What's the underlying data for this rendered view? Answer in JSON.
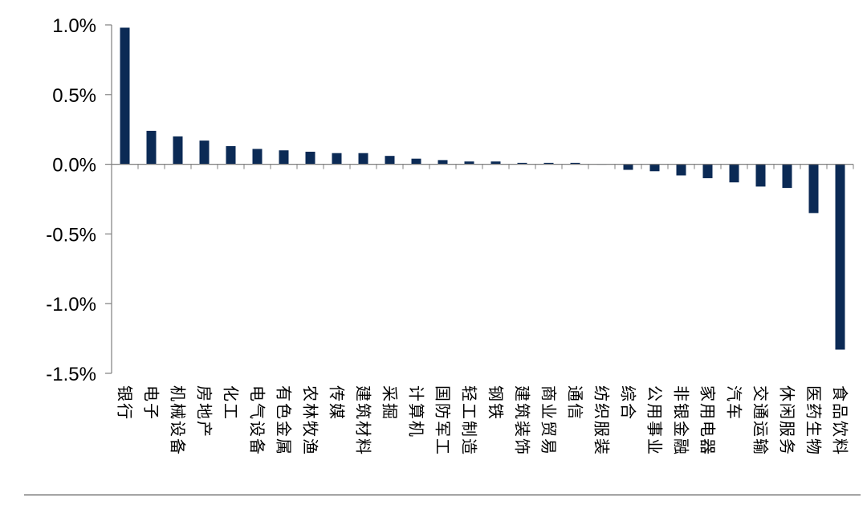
{
  "chart_data": {
    "type": "bar",
    "orientation": "vertical",
    "title": "",
    "xlabel": "",
    "ylabel": "",
    "ylim": [
      -1.5,
      1.0
    ],
    "yticks": [
      1.0,
      0.5,
      0.0,
      -0.5,
      -1.0,
      -1.5
    ],
    "ytick_labels": [
      "1.0%",
      "0.5%",
      "0.0%",
      "-0.5%",
      "-1.0%",
      "-1.5%"
    ],
    "grid": false,
    "legend": "none",
    "bar_color": "#0b2a55",
    "categories": [
      "银行",
      "电子",
      "机械设备",
      "房地产",
      "化工",
      "电气设备",
      "有色金属",
      "农林牧渔",
      "传媒",
      "建筑材料",
      "采掘",
      "计算机",
      "国防军工",
      "轻工制造",
      "钢铁",
      "建筑装饰",
      "商业贸易",
      "通信",
      "纺织服装",
      "综合",
      "公用事业",
      "非银金融",
      "家用电器",
      "汽车",
      "交通运输",
      "休闲服务",
      "医药生物",
      "食品饮料"
    ],
    "values": [
      0.98,
      0.24,
      0.2,
      0.17,
      0.13,
      0.11,
      0.1,
      0.09,
      0.08,
      0.08,
      0.06,
      0.04,
      0.03,
      0.02,
      0.02,
      0.01,
      0.01,
      0.01,
      0.0,
      -0.04,
      -0.05,
      -0.08,
      -0.1,
      -0.13,
      -0.16,
      -0.17,
      -0.35,
      -1.33
    ]
  }
}
